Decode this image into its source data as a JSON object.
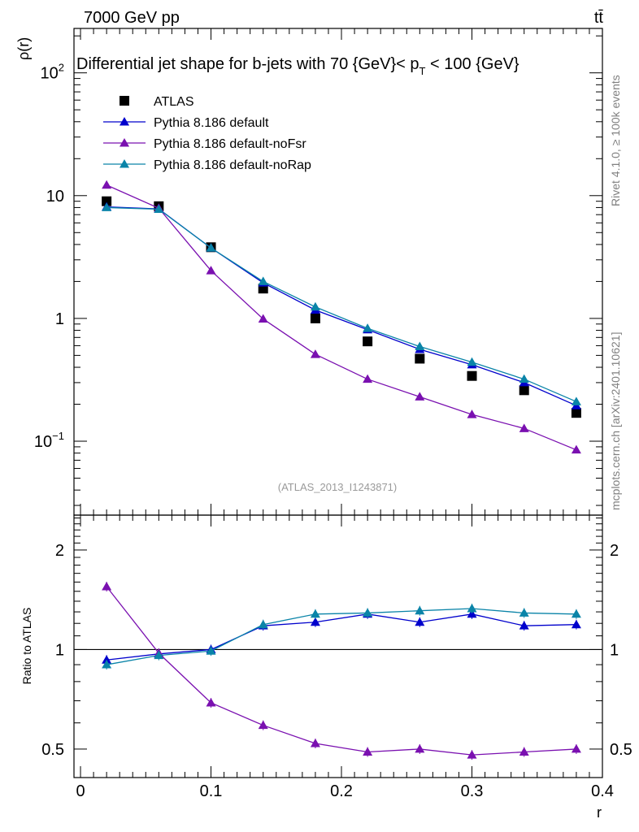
{
  "header": {
    "process": "7000 GeV pp",
    "final_state": "tt̄",
    "rivet_version": "Rivet 4.1.0, ≥ 100k events",
    "source": "mcplots.cern.ch [arXiv:2401.10621]"
  },
  "colors": {
    "atlas": "#000000",
    "default": "#0000cc",
    "noFsr": "#7a10b0",
    "noRap": "#0a84a8"
  },
  "chart_data": [
    {
      "type": "line",
      "title": "Differential jet shape for b-jets with 70 {GeV}< p_T < 100 {GeV}",
      "title_parts": {
        "main": "Differential jet shape for b-jets with 70 {GeV}< p",
        "sub": "T",
        "tail": " < 100 {GeV}"
      },
      "analysis_id": "(ATLAS_2013_I1243871)",
      "ylabel": "ρ(r)",
      "xlabel": "",
      "yscale": "log",
      "ylim": [
        0.025,
        230
      ],
      "xlim": [
        -0.005,
        0.4
      ],
      "yticks": [
        {
          "value": 100,
          "label": "10",
          "exp": "2"
        },
        {
          "value": 10,
          "label": "10",
          "exp": ""
        },
        {
          "value": 1,
          "label": "1",
          "exp": ""
        },
        {
          "value": 0.1,
          "label": "10",
          "exp": "−1"
        }
      ],
      "x": [
        0.02,
        0.06,
        0.1,
        0.14,
        0.18,
        0.22,
        0.26,
        0.3,
        0.34,
        0.38
      ],
      "series": [
        {
          "name": "ATLAS",
          "key": "atlas",
          "marker": "square",
          "line": false,
          "values": [
            9.0,
            8.2,
            3.8,
            1.75,
            1.0,
            0.65,
            0.47,
            0.34,
            0.26,
            0.17
          ]
        },
        {
          "name": "Pythia 8.186 default",
          "key": "default",
          "marker": "triangle",
          "line": true,
          "values": [
            8.1,
            7.8,
            3.75,
            1.95,
            1.17,
            0.81,
            0.56,
            0.42,
            0.3,
            0.195
          ]
        },
        {
          "name": "Pythia 8.186 default-noFsr",
          "key": "noFsr",
          "marker": "triangle",
          "line": true,
          "values": [
            12.2,
            7.9,
            2.45,
            0.99,
            0.51,
            0.32,
            0.23,
            0.165,
            0.127,
            0.085
          ]
        },
        {
          "name": "Pythia 8.186 default-noRap",
          "key": "noRap",
          "marker": "triangle",
          "line": true,
          "values": [
            8.0,
            7.75,
            3.75,
            2.0,
            1.24,
            0.83,
            0.59,
            0.44,
            0.32,
            0.21
          ]
        }
      ]
    },
    {
      "type": "line",
      "title": "",
      "ylabel": "Ratio to ATLAS",
      "xlabel": "r",
      "yscale": "log",
      "ylim": [
        0.41,
        2.55
      ],
      "xlim": [
        -0.005,
        0.4
      ],
      "reference": 1,
      "yticks": [
        {
          "value": 2,
          "label": "2"
        },
        {
          "value": 1,
          "label": "1"
        },
        {
          "value": 0.5,
          "label": "0.5"
        }
      ],
      "xticks": [
        {
          "value": 0,
          "label": "0"
        },
        {
          "value": 0.1,
          "label": "0.1"
        },
        {
          "value": 0.2,
          "label": "0.2"
        },
        {
          "value": 0.3,
          "label": "0.3"
        },
        {
          "value": 0.4,
          "label": "0.4"
        }
      ],
      "x": [
        0.02,
        0.06,
        0.1,
        0.14,
        0.18,
        0.22,
        0.26,
        0.3,
        0.34,
        0.38
      ],
      "series": [
        {
          "name": "Pythia 8.186 default",
          "key": "default",
          "values": [
            0.93,
            0.97,
            1.0,
            1.18,
            1.21,
            1.28,
            1.21,
            1.28,
            1.18,
            1.19
          ]
        },
        {
          "name": "Pythia 8.186 default-noFsr",
          "key": "noFsr",
          "values": [
            1.55,
            0.975,
            0.69,
            0.59,
            0.52,
            0.49,
            0.5,
            0.48,
            0.49,
            0.5
          ]
        },
        {
          "name": "Pythia 8.186 default-noRap",
          "key": "noRap",
          "values": [
            0.9,
            0.96,
            0.99,
            1.19,
            1.28,
            1.29,
            1.31,
            1.33,
            1.29,
            1.28
          ]
        }
      ]
    }
  ]
}
